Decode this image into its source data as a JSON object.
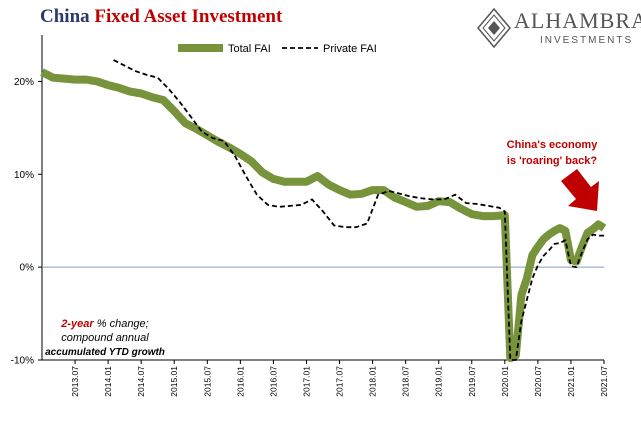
{
  "title": {
    "part1": "China",
    "part2": "Fixed Asset Investment"
  },
  "brand": {
    "name": "ALHAMBRA",
    "sub": "INVESTMENTS",
    "icon": "alhambra-diamond-logo"
  },
  "colors": {
    "total_fai": "#77933c",
    "private_fai": "#000000",
    "zero_line": "#7f9fbf",
    "annotation": "#c00000",
    "arrow": "#c00000"
  },
  "annotations": {
    "economy_line1": "China's economy",
    "economy_line2": "is 'roaring' back?",
    "note_line1_red": "2-year",
    "note_line1_rest": " % change;",
    "note_line2": "compound annual",
    "note_line3": "accumulated YTD growth"
  },
  "chart_data": {
    "type": "line",
    "title": "China Fixed Asset Investment",
    "xlabel": "",
    "ylabel": "",
    "ylim": [
      -10,
      25
    ],
    "xlim": [
      "2013-01",
      "2021-07"
    ],
    "y_ticks": [
      {
        "value": 20,
        "label": "20%"
      },
      {
        "value": 10,
        "label": "10%"
      },
      {
        "value": 0,
        "label": "0%"
      },
      {
        "value": -10,
        "label": "-10%"
      }
    ],
    "x_ticks": [
      "2013.07",
      "2014.01",
      "2014.07",
      "2015.01",
      "2015.07",
      "2016.01",
      "2016.07",
      "2017.01",
      "2017.07",
      "2018.01",
      "2018.07",
      "2019.01",
      "2019.07",
      "2020.01",
      "2020.07",
      "2021.01",
      "2021.07"
    ],
    "legend": {
      "position": "top-center",
      "entries": [
        "Total FAI",
        "Private FAI"
      ]
    },
    "series": [
      {
        "name": "Total FAI",
        "style": "thick-solid",
        "points": [
          [
            "2013-01",
            21.0
          ],
          [
            "2013-03",
            20.4
          ],
          [
            "2013-05",
            20.3
          ],
          [
            "2013-07",
            20.2
          ],
          [
            "2013-09",
            20.2
          ],
          [
            "2013-11",
            20.0
          ],
          [
            "2014-01",
            19.6
          ],
          [
            "2014-03",
            19.3
          ],
          [
            "2014-05",
            18.9
          ],
          [
            "2014-07",
            18.7
          ],
          [
            "2014-09",
            18.3
          ],
          [
            "2014-11",
            18.0
          ],
          [
            "2015-01",
            16.8
          ],
          [
            "2015-03",
            15.5
          ],
          [
            "2015-05",
            14.9
          ],
          [
            "2015-07",
            14.2
          ],
          [
            "2015-09",
            13.5
          ],
          [
            "2015-11",
            12.9
          ],
          [
            "2016-01",
            12.2
          ],
          [
            "2016-03",
            11.4
          ],
          [
            "2016-05",
            10.2
          ],
          [
            "2016-07",
            9.5
          ],
          [
            "2016-09",
            9.2
          ],
          [
            "2016-11",
            9.2
          ],
          [
            "2017-01",
            9.2
          ],
          [
            "2017-03",
            9.8
          ],
          [
            "2017-05",
            8.9
          ],
          [
            "2017-07",
            8.3
          ],
          [
            "2017-09",
            7.8
          ],
          [
            "2017-11",
            7.9
          ],
          [
            "2018-01",
            8.3
          ],
          [
            "2018-03",
            8.3
          ],
          [
            "2018-05",
            7.5
          ],
          [
            "2018-07",
            7.0
          ],
          [
            "2018-09",
            6.5
          ],
          [
            "2018-11",
            6.6
          ],
          [
            "2019-01",
            7.1
          ],
          [
            "2019-03",
            7.0
          ],
          [
            "2019-05",
            6.3
          ],
          [
            "2019-07",
            5.7
          ],
          [
            "2019-09",
            5.5
          ],
          [
            "2019-11",
            5.5
          ],
          [
            "2020-01",
            5.6
          ],
          [
            "2020-02",
            -9.8
          ],
          [
            "2020-03",
            -9.5
          ],
          [
            "2020-04",
            -3.0
          ],
          [
            "2020-05",
            -1.2
          ],
          [
            "2020-06",
            1.3
          ],
          [
            "2020-07",
            2.2
          ],
          [
            "2020-08",
            3.0
          ],
          [
            "2020-09",
            3.5
          ],
          [
            "2020-10",
            3.9
          ],
          [
            "2020-11",
            4.2
          ],
          [
            "2020-12",
            3.9
          ],
          [
            "2021-01",
            0.8
          ],
          [
            "2021-02",
            0.6
          ],
          [
            "2021-03",
            2.2
          ],
          [
            "2021-04",
            3.7
          ],
          [
            "2021-05",
            4.1
          ],
          [
            "2021-06",
            4.6
          ],
          [
            "2021-07",
            4.2
          ]
        ]
      },
      {
        "name": "Private FAI",
        "style": "dashed",
        "points": [
          [
            "2014-02",
            22.3
          ],
          [
            "2014-04",
            21.7
          ],
          [
            "2014-06",
            21.1
          ],
          [
            "2014-08",
            20.7
          ],
          [
            "2014-10",
            20.4
          ],
          [
            "2014-12",
            19.2
          ],
          [
            "2015-02",
            17.8
          ],
          [
            "2015-04",
            16.2
          ],
          [
            "2015-06",
            14.6
          ],
          [
            "2015-08",
            13.9
          ],
          [
            "2015-10",
            13.6
          ],
          [
            "2015-12",
            12.0
          ],
          [
            "2016-02",
            9.8
          ],
          [
            "2016-04",
            7.8
          ],
          [
            "2016-06",
            6.7
          ],
          [
            "2016-08",
            6.5
          ],
          [
            "2016-10",
            6.6
          ],
          [
            "2016-12",
            6.7
          ],
          [
            "2017-02",
            7.3
          ],
          [
            "2017-04",
            6.0
          ],
          [
            "2017-06",
            4.5
          ],
          [
            "2017-08",
            4.3
          ],
          [
            "2017-10",
            4.3
          ],
          [
            "2017-12",
            4.7
          ],
          [
            "2018-02",
            7.8
          ],
          [
            "2018-04",
            8.2
          ],
          [
            "2018-06",
            7.9
          ],
          [
            "2018-08",
            7.6
          ],
          [
            "2018-10",
            7.4
          ],
          [
            "2018-12",
            7.3
          ],
          [
            "2019-02",
            7.3
          ],
          [
            "2019-04",
            7.8
          ],
          [
            "2019-06",
            6.9
          ],
          [
            "2019-08",
            6.8
          ],
          [
            "2019-10",
            6.6
          ],
          [
            "2019-12",
            6.4
          ],
          [
            "2020-01",
            6.0
          ],
          [
            "2020-02",
            -10.0
          ],
          [
            "2020-03",
            -10.0
          ],
          [
            "2020-04",
            -5.8
          ],
          [
            "2020-05",
            -3.5
          ],
          [
            "2020-06",
            -1.2
          ],
          [
            "2020-07",
            0.2
          ],
          [
            "2020-08",
            1.2
          ],
          [
            "2020-09",
            1.8
          ],
          [
            "2020-10",
            2.5
          ],
          [
            "2020-11",
            2.6
          ],
          [
            "2020-12",
            2.9
          ],
          [
            "2021-01",
            0.1
          ],
          [
            "2021-02",
            0.0
          ],
          [
            "2021-03",
            1.6
          ],
          [
            "2021-04",
            3.0
          ],
          [
            "2021-05",
            3.5
          ],
          [
            "2021-06",
            3.4
          ],
          [
            "2021-07",
            3.4
          ]
        ]
      }
    ]
  }
}
